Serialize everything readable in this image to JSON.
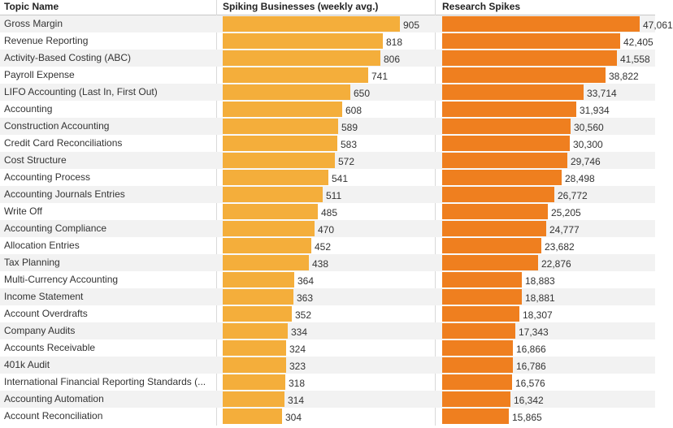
{
  "chart_data": {
    "type": "bar",
    "orientation": "horizontal",
    "columns": {
      "topic": "Topic Name",
      "businesses": "Spiking Businesses (weekly avg.)",
      "research": "Research Spikes"
    },
    "categories": [
      "Gross Margin",
      "Revenue Reporting",
      "Activity-Based Costing (ABC)",
      "Payroll Expense",
      "LIFO Accounting (Last In, First Out)",
      "Accounting",
      "Construction Accounting",
      "Credit Card Reconciliations",
      "Cost Structure",
      "Accounting Process",
      "Accounting Journals Entries",
      "Write Off",
      "Accounting Compliance",
      "Allocation Entries",
      "Tax Planning",
      "Multi-Currency Accounting",
      "Income Statement",
      "Account Overdrafts",
      "Company Audits",
      "Accounts Receivable",
      "401k Audit",
      "International Financial Reporting Standards (...",
      "Accounting Automation",
      "Account Reconciliation"
    ],
    "series": [
      {
        "name": "Spiking Businesses (weekly avg.)",
        "color": "#f4ae3b",
        "values": [
          905,
          818,
          806,
          741,
          650,
          608,
          589,
          583,
          572,
          541,
          511,
          485,
          470,
          452,
          438,
          364,
          363,
          352,
          334,
          324,
          323,
          318,
          314,
          304
        ],
        "labels": [
          "905",
          "818",
          "806",
          "741",
          "650",
          "608",
          "589",
          "583",
          "572",
          "541",
          "511",
          "485",
          "470",
          "452",
          "438",
          "364",
          "363",
          "352",
          "334",
          "324",
          "323",
          "318",
          "314",
          "304"
        ]
      },
      {
        "name": "Research Spikes",
        "color": "#ef7f1f",
        "values": [
          47061,
          42405,
          41558,
          38822,
          33714,
          31934,
          30560,
          30300,
          29746,
          28498,
          26772,
          25205,
          24777,
          23682,
          22876,
          18883,
          18881,
          18307,
          17343,
          16866,
          16786,
          16576,
          16342,
          15865
        ],
        "labels": [
          "47,061",
          "42,405",
          "41,558",
          "38,822",
          "33,714",
          "31,934",
          "30,560",
          "30,300",
          "29,746",
          "28,498",
          "26,772",
          "25,205",
          "24,777",
          "23,682",
          "22,876",
          "18,883",
          "18,881",
          "18,307",
          "17,343",
          "16,866",
          "16,786",
          "16,576",
          "16,342",
          "15,865"
        ]
      }
    ],
    "xlim_businesses": [
      0,
      1000
    ],
    "xlim_research": [
      0,
      50300
    ]
  }
}
